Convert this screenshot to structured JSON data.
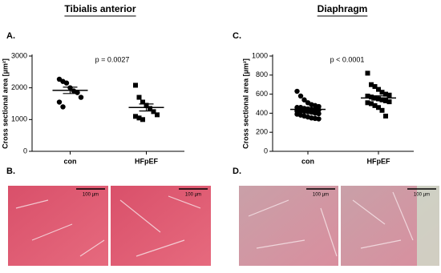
{
  "chart_data": [
    {
      "type": "dot",
      "title": "Tibialis anterior",
      "panel_label": "A.",
      "ylabel": "Cross sectional area [µm²]",
      "annotation": "p = 0.0027",
      "categories": [
        "con",
        "HFpEF"
      ],
      "values": [
        [
          2270,
          2200,
          2150,
          2000,
          1900,
          1850,
          1700,
          1550,
          1400
        ],
        [
          2080,
          1700,
          1550,
          1450,
          1350,
          1250,
          1150,
          1100,
          1050,
          1000
        ]
      ],
      "mean": [
        1920,
        1380
      ],
      "sem": [
        100,
        110
      ],
      "markers": [
        "circle",
        "square"
      ],
      "color": "#000000",
      "ylim": [
        0,
        3000
      ],
      "yticks": [
        0,
        1000,
        2000,
        3000
      ]
    },
    {
      "type": "dot",
      "title": "Diaphragm",
      "panel_label": "C.",
      "ylabel": "Cross sectional area [µm²]",
      "annotation": "p < 0.0001",
      "categories": [
        "con",
        "HFpEF"
      ],
      "values": [
        [
          630,
          580,
          540,
          510,
          490,
          480,
          470,
          460,
          455,
          450,
          445,
          440,
          440,
          435,
          430,
          425,
          420,
          415,
          410,
          400,
          395,
          390,
          380,
          370,
          360,
          350,
          345,
          340,
          420,
          460
        ],
        [
          820,
          700,
          680,
          650,
          620,
          600,
          590,
          580,
          570,
          560,
          550,
          540,
          530,
          520,
          510,
          500,
          480,
          460,
          430,
          370
        ]
      ],
      "mean": [
        440,
        560
      ],
      "sem": [
        12,
        22
      ],
      "markers": [
        "circle",
        "square"
      ],
      "color": "#000000",
      "ylim": [
        0,
        1000
      ],
      "yticks": [
        0,
        200,
        400,
        600,
        800,
        1000
      ]
    }
  ],
  "images": [
    {
      "label": "B.",
      "scale_bars": [
        "100 µm",
        "100 µm"
      ]
    },
    {
      "label": "D.",
      "scale_bars": [
        "100 µm",
        "100 µm"
      ]
    }
  ]
}
